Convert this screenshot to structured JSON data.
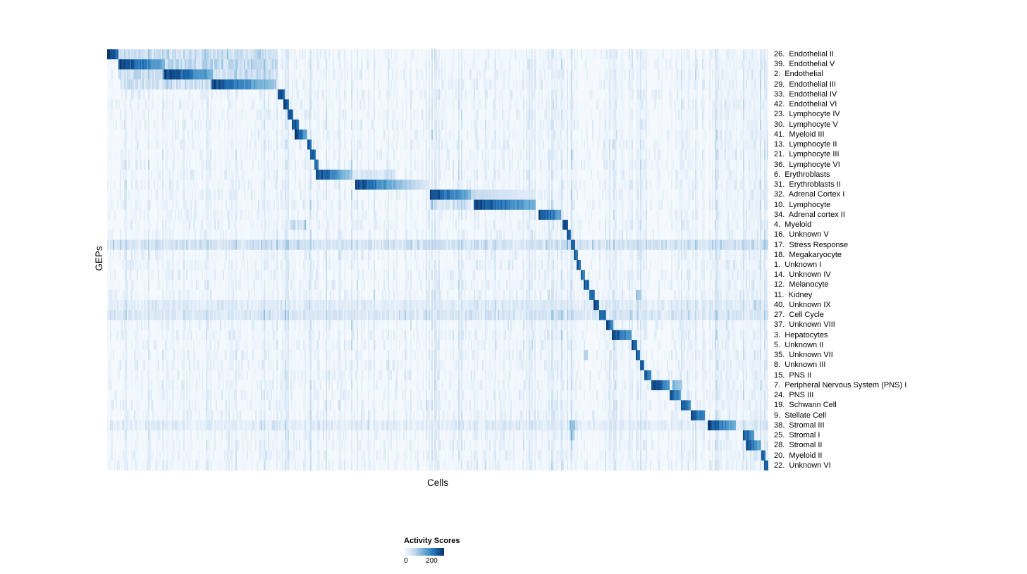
{
  "page": {
    "background": "#ffffff"
  },
  "chart_data": {
    "type": "heatmap",
    "title": "",
    "xlabel": "Cells",
    "ylabel": "GEPs",
    "n_rows": 42,
    "n_cells_axis": "cells (columns, unlabeled)",
    "grid": false,
    "legend": {
      "title": "Activity Scores",
      "min": 0,
      "max": 200,
      "position": "bottom"
    },
    "colormap": "Blues",
    "colormap_stops": [
      [
        0.0,
        "#f7fbff"
      ],
      [
        0.25,
        "#c6dbef"
      ],
      [
        0.5,
        "#6baed6"
      ],
      [
        0.75,
        "#2171b5"
      ],
      [
        1.0,
        "#08306b"
      ]
    ],
    "column_stripes": [
      [
        0.02,
        0.258,
        0.03
      ],
      [
        0.262,
        0.322,
        0.04
      ],
      [
        0.33,
        0.43,
        0.02
      ],
      [
        0.49,
        0.56,
        0.03
      ],
      [
        0.56,
        0.65,
        0.03
      ],
      [
        0.652,
        0.69,
        0.06
      ],
      [
        0.7,
        0.712,
        0.07
      ],
      [
        0.755,
        0.772,
        0.045
      ],
      [
        0.8,
        0.816,
        0.05
      ],
      [
        0.86,
        0.882,
        0.045
      ],
      [
        0.92,
        0.955,
        0.06
      ],
      [
        0.958,
        1.0,
        0.075
      ]
    ],
    "rows": [
      {
        "label": "26.  Endothelial II",
        "segments": [
          [
            0.0,
            0.016,
            1.0,
            0.8
          ]
        ],
        "bands": [
          [
            0.016,
            0.255,
            0.2
          ]
        ]
      },
      {
        "label": "39.  Endothelial V",
        "segments": [
          [
            0.016,
            0.088,
            0.97,
            0.5
          ]
        ],
        "bands": [
          [
            0.088,
            0.258,
            0.22
          ]
        ]
      },
      {
        "label": "2.  Endothelial",
        "segments": [
          [
            0.086,
            0.16,
            0.97,
            0.5
          ]
        ],
        "bands": [
          [
            0.016,
            0.086,
            0.22
          ],
          [
            0.16,
            0.258,
            0.18
          ]
        ]
      },
      {
        "label": "29.  Endothelial III",
        "segments": [
          [
            0.158,
            0.256,
            0.95,
            0.35
          ]
        ],
        "bands": [
          [
            0.02,
            0.158,
            0.18
          ]
        ]
      },
      {
        "label": "33.  Endothelial IV",
        "segments": [
          [
            0.258,
            0.268,
            0.93,
            0.78
          ]
        ]
      },
      {
        "label": "42.  Endothelial VI",
        "segments": [
          [
            0.266,
            0.276,
            0.92,
            0.75
          ]
        ]
      },
      {
        "label": "23.  Lymphocyte IV",
        "segments": [
          [
            0.273,
            0.282,
            0.92,
            0.75
          ]
        ]
      },
      {
        "label": "30.  Lymphocyte V",
        "segments": [
          [
            0.279,
            0.289,
            0.95,
            0.78
          ]
        ]
      },
      {
        "label": "41.  Myeloid III",
        "segments": [
          [
            0.284,
            0.303,
            0.96,
            0.55
          ]
        ]
      },
      {
        "label": "13.  Lymphocyte II",
        "segments": [
          [
            0.303,
            0.31,
            0.92,
            0.72
          ]
        ]
      },
      {
        "label": "21.  Lymphocyte III",
        "segments": [
          [
            0.308,
            0.315,
            0.92,
            0.72
          ]
        ]
      },
      {
        "label": "36.  Lymphocyte VI",
        "segments": [
          [
            0.313,
            0.319,
            0.9,
            0.7
          ]
        ]
      },
      {
        "label": "6.  Erythroblasts",
        "segments": [
          [
            0.316,
            0.372,
            0.96,
            0.32
          ]
        ],
        "bands": [
          [
            0.372,
            0.435,
            0.12
          ]
        ]
      },
      {
        "label": "31.  Erythroblasts II",
        "segments": [
          [
            0.375,
            0.437,
            0.94,
            0.45
          ],
          [
            0.437,
            0.489,
            0.45,
            0.1
          ]
        ]
      },
      {
        "label": "32.  Adrenal Cortex I",
        "segments": [
          [
            0.489,
            0.551,
            0.95,
            0.45
          ],
          [
            0.551,
            0.648,
            0.26,
            0.1
          ]
        ]
      },
      {
        "label": "10.  Lymphocyte",
        "segments": [
          [
            0.554,
            0.649,
            0.95,
            0.48
          ]
        ],
        "bands": [
          [
            0.489,
            0.551,
            0.14
          ]
        ]
      },
      {
        "label": "34.  Adrenal cortex II",
        "segments": [
          [
            0.652,
            0.686,
            0.96,
            0.55
          ]
        ]
      },
      {
        "label": "4.  Myeloid",
        "segments": [
          [
            0.688,
            0.697,
            0.94,
            0.78
          ]
        ],
        "bands": [
          [
            0.276,
            0.302,
            0.18
          ]
        ]
      },
      {
        "label": "16.  Unknown V",
        "segments": [
          [
            0.696,
            0.702,
            0.9,
            0.72
          ]
        ]
      },
      {
        "label": "17.  Stress Response",
        "segments": [
          [
            0.701,
            0.707,
            0.92,
            0.75
          ]
        ],
        "bands": [
          [
            0.0,
            1.0,
            0.16
          ]
        ]
      },
      {
        "label": "18.  Megakaryocyte",
        "segments": [
          [
            0.706,
            0.712,
            0.9,
            0.72
          ]
        ]
      },
      {
        "label": "1.  Unknown I",
        "segments": [
          [
            0.711,
            0.717,
            0.88,
            0.7
          ]
        ]
      },
      {
        "label": "14.  Unknown IV",
        "segments": [
          [
            0.716,
            0.722,
            0.88,
            0.7
          ]
        ]
      },
      {
        "label": "12.  Melanocyte",
        "segments": [
          [
            0.721,
            0.73,
            0.9,
            0.7
          ]
        ]
      },
      {
        "label": "11.  Kidney",
        "segments": [
          [
            0.729,
            0.737,
            0.9,
            0.7
          ],
          [
            0.8,
            0.806,
            0.45,
            0.35
          ]
        ]
      },
      {
        "label": "40.  Unknown IX",
        "segments": [
          [
            0.736,
            0.745,
            0.9,
            0.7
          ]
        ],
        "bands": [
          [
            0.0,
            1.0,
            0.08
          ]
        ]
      },
      {
        "label": "27.  Cell Cycle",
        "segments": [
          [
            0.744,
            0.755,
            0.92,
            0.68
          ]
        ],
        "bands": [
          [
            0.0,
            1.0,
            0.12
          ]
        ]
      },
      {
        "label": "37.  Unknown VIII",
        "segments": [
          [
            0.754,
            0.765,
            0.92,
            0.68
          ]
        ]
      },
      {
        "label": "3.  Hepatocytes",
        "segments": [
          [
            0.764,
            0.793,
            0.95,
            0.55
          ]
        ]
      },
      {
        "label": "5.  Unknown II",
        "segments": [
          [
            0.794,
            0.801,
            0.9,
            0.72
          ]
        ]
      },
      {
        "label": "35.  Unknown VII",
        "segments": [
          [
            0.8,
            0.807,
            0.88,
            0.7
          ],
          [
            0.721,
            0.727,
            0.32,
            0.25
          ]
        ]
      },
      {
        "label": "8.  Unknown III",
        "segments": [
          [
            0.806,
            0.813,
            0.9,
            0.7
          ]
        ]
      },
      {
        "label": "15.  PNS II",
        "segments": [
          [
            0.813,
            0.824,
            0.9,
            0.62
          ]
        ]
      },
      {
        "label": "7.  Peripheral Nervous System (PNS) I",
        "segments": [
          [
            0.824,
            0.851,
            0.97,
            0.62
          ],
          [
            0.854,
            0.871,
            0.5,
            0.32
          ]
        ]
      },
      {
        "label": "24.  PNS III",
        "segments": [
          [
            0.85,
            0.867,
            0.93,
            0.58
          ]
        ]
      },
      {
        "label": "19.  Schwann Cell",
        "segments": [
          [
            0.867,
            0.883,
            0.93,
            0.58
          ]
        ]
      },
      {
        "label": "9.  Stellate Cell",
        "segments": [
          [
            0.883,
            0.905,
            0.94,
            0.58
          ]
        ]
      },
      {
        "label": "38.  Stromal III",
        "segments": [
          [
            0.909,
            0.952,
            0.95,
            0.42
          ]
        ],
        "bands": [
          [
            0.7,
            0.71,
            0.28
          ],
          [
            0.0,
            1.0,
            0.07
          ]
        ]
      },
      {
        "label": "25.  Stromal I",
        "segments": [
          [
            0.961,
            0.979,
            0.92,
            0.55
          ]
        ],
        "bands": [
          [
            0.7,
            0.708,
            0.22
          ]
        ]
      },
      {
        "label": "28.  Stromal II",
        "segments": [
          [
            0.966,
            0.989,
            0.92,
            0.5
          ]
        ]
      },
      {
        "label": "20.  Myeloid II",
        "segments": [
          [
            0.989,
            0.995,
            0.9,
            0.72
          ]
        ]
      },
      {
        "label": "22.  Unknown VI",
        "segments": [
          [
            0.994,
            1.0,
            0.95,
            0.8
          ]
        ]
      }
    ]
  }
}
